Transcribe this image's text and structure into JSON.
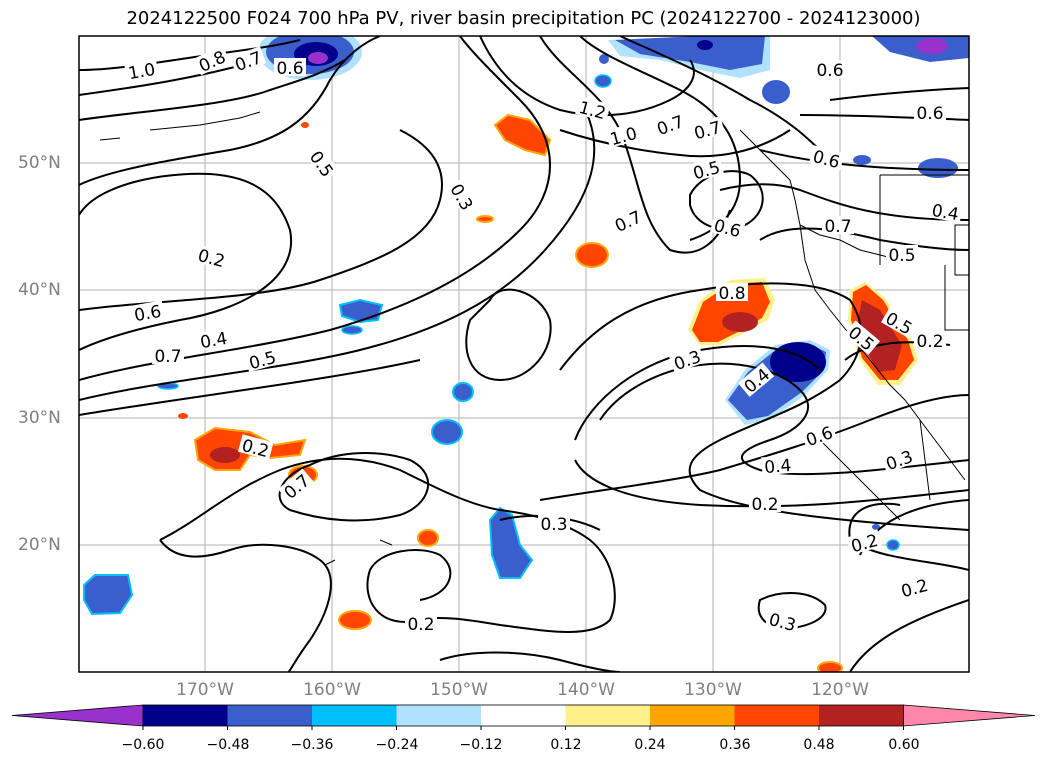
{
  "title": "2024122500 F024 700 hPa PV, river basin precipitation PC (2024122700 - 2024123000)",
  "latitude_labels": [
    "50°N",
    "40°N",
    "30°N",
    "20°N"
  ],
  "longitude_labels": [
    "170°W",
    "160°W",
    "150°W",
    "140°W",
    "130°W",
    "120°W"
  ],
  "colorbar": {
    "tick_labels": [
      "−0.60",
      "−0.48",
      "−0.36",
      "−0.24",
      "−0.12",
      "0.12",
      "0.24",
      "0.36",
      "0.48",
      "0.60"
    ],
    "colors": [
      "#9932cc",
      "#00008b",
      "#3a5fcd",
      "#00bfff",
      "#b0e2ff",
      "#ffffff",
      "#fff08a",
      "#ffa500",
      "#ff4500",
      "#b22222",
      "#ff88aa"
    ]
  },
  "contour_labels": [
    "1.0",
    "0.8",
    "0.7",
    "0.6",
    "0.5",
    "0.3",
    "1.2",
    "1.0",
    "0.7",
    "0.7",
    "0.5",
    "0.6",
    "0.7",
    "0.6",
    "0.6",
    "0.6",
    "0.7",
    "0.5",
    "0.4",
    "0.6",
    "0.7",
    "0.4",
    "0.5",
    "0.2",
    "0.3",
    "0.8",
    "0.5",
    "0.5",
    "0.2",
    "0.4",
    "0.2",
    "0.7",
    "0.6",
    "0.4",
    "0.3",
    "0.2",
    "0.3",
    "0.2",
    "0.2",
    "0.3",
    "0.2"
  ]
}
